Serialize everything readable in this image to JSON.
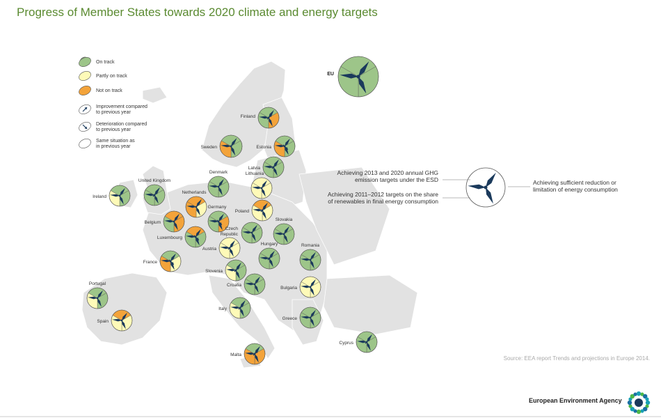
{
  "title": "Progress of Member States towards 2020 climate and energy targets",
  "colors": {
    "on_track": "#9dc589",
    "partly": "#fefab8",
    "not_on_track": "#f3a33a",
    "blade": "#1b3a5c",
    "land": "#e2e2e2",
    "title": "#5a8a30"
  },
  "legend": {
    "on_track": "On track",
    "partly": "Partly on track",
    "not_on_track": "Not on track",
    "improvement_l1": "Improvement compared",
    "improvement_l2": "to previous year",
    "deterioration_l1": "Deterioration compared",
    "deterioration_l2": "to previous year",
    "same_l1": "Same situation as",
    "same_l2": "in previous year"
  },
  "key": {
    "ghg_l1": "Achieving 2013 and 2020 annual GHG",
    "ghg_l2": "emission targets under the ESD",
    "ren_l1": "Achieving 2011–2012 targets on the share",
    "ren_l2": "of renewables in final energy consumption",
    "eff_l1": "Achieving sufficient reduction or",
    "eff_l2": "limitation of energy consumption"
  },
  "countries": [
    {
      "name": "EU",
      "sectors": [
        "on_track",
        "on_track",
        "on_track"
      ],
      "trend": "same"
    },
    {
      "name": "Finland",
      "sectors": [
        "on_track",
        "on_track",
        "not_on_track"
      ],
      "trend": "improvement"
    },
    {
      "name": "Sweden",
      "sectors": [
        "on_track",
        "not_on_track",
        "on_track"
      ],
      "trend": "same"
    },
    {
      "name": "Estonia",
      "sectors": [
        "on_track",
        "not_on_track",
        "on_track"
      ],
      "trend": "deterioration"
    },
    {
      "name": "Latvia",
      "sectors": [
        "on_track",
        "on_track",
        "on_track"
      ],
      "trend": "improvement"
    },
    {
      "name": "Denmark",
      "sectors": [
        "on_track",
        "on_track",
        "on_track"
      ],
      "trend": "same"
    },
    {
      "name": "Lithuania",
      "sectors": [
        "partly",
        "partly",
        "partly"
      ],
      "trend": "same"
    },
    {
      "name": "United Kingdom",
      "sectors": [
        "on_track",
        "on_track",
        "on_track"
      ],
      "trend": "improvement"
    },
    {
      "name": "Ireland",
      "sectors": [
        "on_track",
        "partly",
        "on_track"
      ],
      "trend": "same"
    },
    {
      "name": "Netherlands",
      "sectors": [
        "not_on_track",
        "not_on_track",
        "partly"
      ],
      "trend": "same"
    },
    {
      "name": "Germany",
      "sectors": [
        "on_track",
        "on_track",
        "not_on_track"
      ],
      "trend": "deterioration"
    },
    {
      "name": "Poland",
      "sectors": [
        "not_on_track",
        "partly",
        "partly"
      ],
      "trend": "improvement"
    },
    {
      "name": "Belgium",
      "sectors": [
        "not_on_track",
        "on_track",
        "not_on_track"
      ],
      "trend": "same"
    },
    {
      "name": "Luxembourg",
      "sectors": [
        "not_on_track",
        "on_track",
        "on_track"
      ],
      "trend": "deterioration"
    },
    {
      "name": "Czech Republic",
      "sectors": [
        "on_track",
        "on_track",
        "on_track"
      ],
      "trend": "same"
    },
    {
      "name": "Slovakia",
      "sectors": [
        "on_track",
        "on_track",
        "on_track"
      ],
      "trend": "same"
    },
    {
      "name": "Austria",
      "sectors": [
        "partly",
        "partly",
        "partly"
      ],
      "trend": "improvement"
    },
    {
      "name": "Hungary",
      "sectors": [
        "on_track",
        "on_track",
        "on_track"
      ],
      "trend": "improvement"
    },
    {
      "name": "Romania",
      "sectors": [
        "on_track",
        "on_track",
        "on_track"
      ],
      "trend": "same"
    },
    {
      "name": "France",
      "sectors": [
        "on_track",
        "not_on_track",
        "partly"
      ],
      "trend": "deterioration"
    },
    {
      "name": "Slovenia",
      "sectors": [
        "on_track",
        "partly",
        "on_track"
      ],
      "trend": "improvement"
    },
    {
      "name": "Croatia",
      "sectors": [
        "on_track",
        "on_track",
        "on_track"
      ],
      "trend": "same"
    },
    {
      "name": "Bulgaria",
      "sectors": [
        "partly",
        "partly",
        "partly"
      ],
      "trend": "same"
    },
    {
      "name": "Portugal",
      "sectors": [
        "on_track",
        "partly",
        "on_track"
      ],
      "trend": "same"
    },
    {
      "name": "Spain",
      "sectors": [
        "not_on_track",
        "partly",
        "partly"
      ],
      "trend": "same"
    },
    {
      "name": "Italy",
      "sectors": [
        "on_track",
        "partly",
        "on_track"
      ],
      "trend": "improvement"
    },
    {
      "name": "Greece",
      "sectors": [
        "on_track",
        "on_track",
        "on_track"
      ],
      "trend": "same"
    },
    {
      "name": "Cyprus",
      "sectors": [
        "on_track",
        "on_track",
        "on_track"
      ],
      "trend": "improvement"
    },
    {
      "name": "Malta",
      "sectors": [
        "on_track",
        "not_on_track",
        "not_on_track"
      ],
      "trend": "improvement"
    }
  ],
  "source": "Source: EEA report Trends and projections in Europe 2014.",
  "agency": "European Environment Agency"
}
